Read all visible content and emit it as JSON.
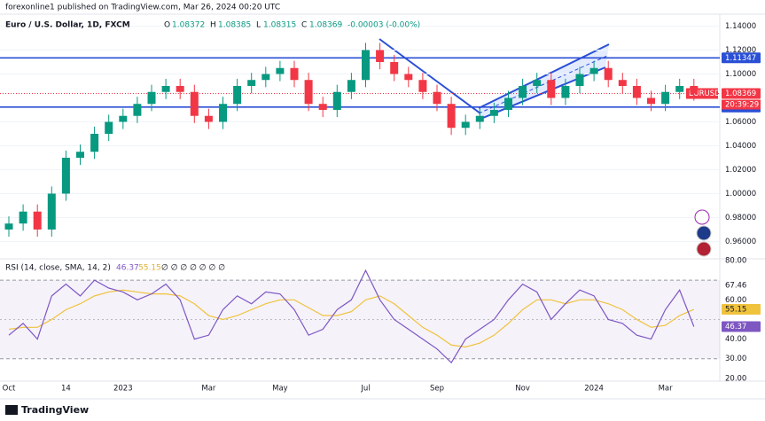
{
  "header": {
    "publisher": "forexonline1 published on TradingView.com, Mar 26, 2024 00:20 UTC",
    "footer": "TradingView"
  },
  "chart_data": [
    {
      "type": "candlestick",
      "title": "Euro / U.S. Dollar, 1D, FXCM",
      "ohlc_text": [
        "O",
        "1.08372",
        "H",
        "1.08385",
        "L",
        "1.08315",
        "C",
        "1.08369",
        "-0.00003 (-0.00%)"
      ],
      "symbol": "EURUSD",
      "last_price": 1.08369,
      "countdown": "20:39:29",
      "levels": [
        1.11347,
        1.07238
      ],
      "categories": [
        "Oct",
        null,
        null,
        null,
        "14",
        null,
        null,
        null,
        "2023",
        null,
        null,
        null,
        null,
        null,
        "Mar",
        null,
        null,
        null,
        null,
        "May",
        null,
        null,
        null,
        null,
        null,
        "Jul",
        null,
        null,
        null,
        null,
        "Sep",
        null,
        null,
        null,
        null,
        null,
        "Nov",
        null,
        null,
        null,
        null,
        "2024",
        null,
        null,
        null,
        null,
        "Mar",
        null,
        null
      ],
      "open": [
        0.97,
        0.975,
        0.985,
        0.97,
        1.0,
        1.03,
        1.035,
        1.05,
        1.06,
        1.065,
        1.075,
        1.085,
        1.09,
        1.085,
        1.065,
        1.06,
        1.075,
        1.09,
        1.095,
        1.1,
        1.105,
        1.095,
        1.075,
        1.07,
        1.085,
        1.095,
        1.12,
        1.11,
        1.1,
        1.095,
        1.085,
        1.075,
        1.055,
        1.06,
        1.065,
        1.07,
        1.08,
        1.09,
        1.095,
        1.08,
        1.09,
        1.1,
        1.105,
        1.095,
        1.09,
        1.08,
        1.075,
        1.085,
        1.09
      ],
      "high": [
        0.981,
        0.991,
        0.991,
        1.006,
        1.036,
        1.041,
        1.056,
        1.066,
        1.071,
        1.081,
        1.091,
        1.096,
        1.096,
        1.091,
        1.071,
        1.081,
        1.096,
        1.101,
        1.106,
        1.111,
        1.111,
        1.101,
        1.081,
        1.091,
        1.101,
        1.126,
        1.126,
        1.116,
        1.106,
        1.101,
        1.091,
        1.081,
        1.066,
        1.071,
        1.076,
        1.086,
        1.096,
        1.101,
        1.101,
        1.096,
        1.106,
        1.111,
        1.111,
        1.101,
        1.096,
        1.086,
        1.091,
        1.096,
        1.096
      ],
      "low": [
        0.964,
        0.969,
        0.964,
        0.964,
        0.994,
        1.024,
        1.029,
        1.044,
        1.054,
        1.059,
        1.069,
        1.079,
        1.079,
        1.059,
        1.054,
        1.054,
        1.069,
        1.084,
        1.089,
        1.094,
        1.089,
        1.069,
        1.064,
        1.064,
        1.079,
        1.089,
        1.104,
        1.094,
        1.089,
        1.079,
        1.069,
        1.049,
        1.049,
        1.054,
        1.059,
        1.064,
        1.074,
        1.084,
        1.074,
        1.074,
        1.084,
        1.094,
        1.089,
        1.084,
        1.074,
        1.069,
        1.069,
        1.079,
        1.0777
      ],
      "close": [
        0.975,
        0.985,
        0.97,
        1.0,
        1.03,
        1.035,
        1.05,
        1.06,
        1.065,
        1.075,
        1.085,
        1.09,
        1.085,
        1.065,
        1.06,
        1.075,
        1.09,
        1.095,
        1.1,
        1.105,
        1.095,
        1.075,
        1.07,
        1.085,
        1.095,
        1.12,
        1.11,
        1.1,
        1.095,
        1.085,
        1.075,
        1.055,
        1.06,
        1.065,
        1.07,
        1.08,
        1.09,
        1.095,
        1.08,
        1.09,
        1.1,
        1.105,
        1.095,
        1.09,
        1.08,
        1.075,
        1.085,
        1.09,
        1.0837
      ],
      "up_color": "#089981",
      "down_color": "#f23645",
      "level_color": "#2a4fd6",
      "ylim": [
        0.947,
        1.15
      ],
      "yticks": [
        {
          "value": 0.96,
          "label": "0.96000"
        },
        {
          "value": 0.98,
          "label": "0.98000"
        },
        {
          "value": 1.0,
          "label": "1.00000"
        },
        {
          "value": 1.02,
          "label": "1.02000"
        },
        {
          "value": 1.04,
          "label": "1.04000"
        },
        {
          "value": 1.06,
          "label": "1.06000"
        },
        {
          "value": 1.1,
          "label": "1.10000"
        },
        {
          "value": 1.12,
          "label": "1.12000"
        },
        {
          "value": 1.14,
          "label": "1.14000"
        }
      ],
      "grid": true
    },
    {
      "type": "line",
      "title": "RSI (14, close, SMA, 14, 2)",
      "flags": "∅ ∅ ∅ ∅ ∅ ∅ ∅",
      "series": [
        {
          "name": "RSI",
          "color": "#7e57c2",
          "values": [
            42,
            48,
            40,
            62,
            68,
            62,
            70,
            66,
            64,
            60,
            63,
            68,
            60,
            40,
            42,
            55,
            62,
            58,
            64,
            63,
            55,
            42,
            45,
            55,
            60,
            75,
            60,
            50,
            45,
            40,
            35,
            28,
            40,
            45,
            50,
            60,
            68,
            64,
            50,
            58,
            65,
            62,
            50,
            48,
            42,
            40,
            55,
            65,
            46.37
          ]
        },
        {
          "name": "RSI-based MA",
          "color": "#f0c33c",
          "values": [
            45,
            46,
            46,
            50,
            55,
            58,
            62,
            64,
            65,
            64,
            63,
            63,
            62,
            58,
            52,
            50,
            52,
            55,
            58,
            60,
            60,
            56,
            52,
            52,
            54,
            60,
            62,
            58,
            52,
            46,
            42,
            37,
            36,
            38,
            42,
            48,
            55,
            60,
            60,
            58,
            60,
            60,
            58,
            55,
            50,
            46,
            47,
            52,
            55.15
          ]
        }
      ],
      "markers": [
        67.46,
        47.33
      ],
      "band": [
        30,
        70
      ],
      "ylim": [
        18.6,
        80
      ],
      "yticks": [
        {
          "value": 20,
          "label": "20.00"
        },
        {
          "value": 30,
          "label": "30.00"
        },
        {
          "value": 40,
          "label": "40.00"
        },
        {
          "value": 60,
          "label": "60.00"
        },
        {
          "value": 80,
          "label": "80.00"
        }
      ]
    }
  ]
}
